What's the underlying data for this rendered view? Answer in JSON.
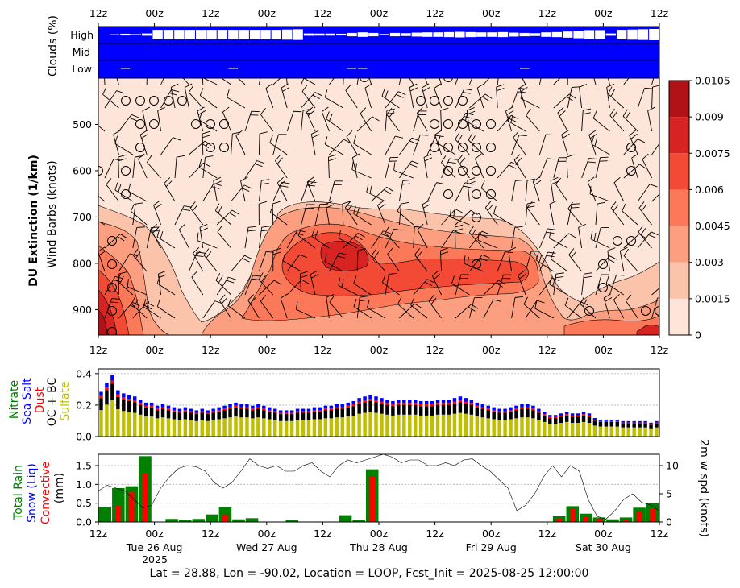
{
  "chart_data": [
    {
      "type": "heatmap",
      "panel": "clouds",
      "ylabel": "Clouds (%)",
      "row_labels": [
        "High",
        "Mid",
        "Low"
      ],
      "top_ticks": [
        "12z",
        "00z",
        "12z",
        "00z",
        "12z",
        "00z",
        "12z",
        "00z",
        "12z",
        "00z",
        "12z"
      ],
      "high_cloud_pct": [
        0,
        6,
        15,
        8,
        20,
        85,
        85,
        85,
        85,
        85,
        85,
        85,
        85,
        85,
        85,
        85,
        85,
        90,
        95,
        20,
        18,
        18,
        15,
        30,
        40,
        30,
        10,
        30,
        25,
        35,
        40,
        40,
        45,
        50,
        45,
        40,
        40,
        45,
        35,
        30,
        25,
        40,
        45,
        55,
        65,
        80,
        80,
        20,
        85,
        90,
        95,
        100
      ],
      "low_cloud_markers": [
        2,
        12,
        23,
        24,
        39
      ]
    },
    {
      "type": "heatmap",
      "panel": "dust_extinction",
      "ylabel": "DU Extinction (1/km)",
      "ylabel2": "Wind Barbs (knots)",
      "y_ticks": [
        "500",
        "600",
        "700",
        "800",
        "900"
      ],
      "x_ticks": [
        "12z",
        "00z",
        "12z",
        "00z",
        "12z",
        "00z",
        "12z",
        "00z",
        "12z",
        "00z",
        "12z"
      ],
      "ylim_hpa": [
        955,
        400
      ],
      "colorbar": {
        "levels": [
          "0",
          "0.0015",
          "0.003",
          "0.0045",
          "0.006",
          "0.0075",
          "0.009",
          "0.0105"
        ],
        "colors": [
          "#fee5d9",
          "#fcc3ab",
          "#fc9f81",
          "#fb7858",
          "#f24a35",
          "#d72422",
          "#b11218"
        ]
      }
    },
    {
      "type": "bar",
      "panel": "aerosol",
      "stacked": true,
      "series_labels": [
        "Nitrate",
        "Sea Salt",
        "Dust",
        "OC + BC",
        "Sulfate"
      ],
      "series_colors": [
        "#008000",
        "#0000ff",
        "#ff0000",
        "#000000",
        "#bfbf00"
      ],
      "y_ticks": [
        "0.0",
        "0.2",
        "0.4"
      ],
      "ylim": [
        0,
        0.43
      ],
      "values_total": [
        0.29,
        0.35,
        0.4,
        0.3,
        0.28,
        0.27,
        0.26,
        0.24,
        0.22,
        0.22,
        0.2,
        0.21,
        0.2,
        0.19,
        0.18,
        0.19,
        0.18,
        0.17,
        0.18,
        0.17,
        0.18,
        0.19,
        0.2,
        0.21,
        0.22,
        0.21,
        0.21,
        0.2,
        0.21,
        0.2,
        0.19,
        0.18,
        0.17,
        0.17,
        0.17,
        0.18,
        0.18,
        0.18,
        0.19,
        0.19,
        0.2,
        0.2,
        0.21,
        0.21,
        0.22,
        0.23,
        0.25,
        0.26,
        0.27,
        0.26,
        0.25,
        0.24,
        0.23,
        0.24,
        0.24,
        0.24,
        0.24,
        0.23,
        0.23,
        0.23,
        0.24,
        0.24,
        0.24,
        0.25,
        0.26,
        0.25,
        0.24,
        0.22,
        0.21,
        0.2,
        0.19,
        0.18,
        0.18,
        0.19,
        0.2,
        0.21,
        0.21,
        0.2,
        0.18,
        0.16,
        0.14,
        0.14,
        0.15,
        0.16,
        0.15,
        0.15,
        0.16,
        0.15,
        0.12,
        0.11,
        0.11,
        0.11,
        0.11,
        0.1,
        0.1,
        0.1,
        0.1,
        0.1,
        0.09,
        0.1
      ]
    },
    {
      "type": "bar",
      "panel": "precip",
      "series_labels": [
        "Total Rain",
        "Snow (Liq)",
        "Convective",
        "(mm)"
      ],
      "series_colors": [
        "#008000",
        "#0000ff",
        "#ff0000",
        "#000000"
      ],
      "y_ticks": [
        "0.0",
        "0.5",
        "1.0",
        "1.5"
      ],
      "ylim": [
        0,
        1.8
      ],
      "total_rain": [
        0.4,
        0.9,
        0.95,
        1.75,
        0.0,
        0.08,
        0.05,
        0.08,
        0.2,
        0.4,
        0.07,
        0.1,
        0.0,
        0.0,
        0.05,
        0.0,
        0.0,
        0.0,
        0.18,
        0.05,
        1.4,
        0.0,
        0.0,
        0.0,
        0.0,
        0.0,
        0.0,
        0.0,
        0.0,
        0.0,
        0.0,
        0.0,
        0.0,
        0.0,
        0.15,
        0.42,
        0.22,
        0.12,
        0.07,
        0.12,
        0.38,
        0.5
      ],
      "convective": [
        0.0,
        0.45,
        0.8,
        1.3,
        0.0,
        0.0,
        0.0,
        0.0,
        0.0,
        0.2,
        0.0,
        0.0,
        0.0,
        0.0,
        0.0,
        0.0,
        0.0,
        0.0,
        0.0,
        0.0,
        1.2,
        0.0,
        0.0,
        0.0,
        0.0,
        0.0,
        0.0,
        0.0,
        0.0,
        0.0,
        0.0,
        0.0,
        0.0,
        0.0,
        0.1,
        0.35,
        0.15,
        0.08,
        0.0,
        0.05,
        0.28,
        0.35
      ],
      "ylabel2": "2m w spd (knots)",
      "y2_ticks": [
        "0",
        "5",
        "10"
      ],
      "y2lim": [
        0,
        12
      ],
      "wind_speed": [
        5.5,
        6.5,
        6.0,
        5.5,
        4.0,
        2.5,
        3.0,
        6.0,
        8.0,
        9.5,
        10.0,
        9.8,
        9.0,
        7.0,
        6.0,
        7.0,
        9.0,
        11.2,
        10.0,
        9.5,
        10.0,
        9.0,
        9.0,
        10.0,
        10.5,
        9.0,
        8.0,
        10.0,
        11.0,
        10.5,
        11.0,
        11.5,
        12.0,
        11.5,
        10.5,
        11.0,
        11.0,
        10.0,
        10.0,
        10.5,
        10.0,
        11.0,
        11.2,
        10.0,
        9.0,
        7.5,
        6.0,
        2.0,
        3.0,
        5.0,
        8.0,
        10.0,
        8.0,
        10.0,
        9.0,
        4.0,
        1.0,
        0.5,
        2.0,
        4.0,
        5.0,
        3.5,
        3.0,
        2.0
      ],
      "x_ticks": [
        "12z",
        "00z",
        "12z",
        "00z",
        "12z",
        "00z",
        "12z",
        "00z",
        "12z",
        "00z",
        "12z"
      ],
      "day_labels": [
        "Tue 26 Aug",
        "Wed 27 Aug",
        "Thu 28 Aug",
        "Fri 29 Aug",
        "Sat 30 Aug"
      ],
      "year_label": "2025"
    }
  ],
  "footer": {
    "caption": "Lat = 28.88, Lon = -90.02, Location = LOOP, Fcst_Init = 2025-08-25 12:00:00"
  }
}
